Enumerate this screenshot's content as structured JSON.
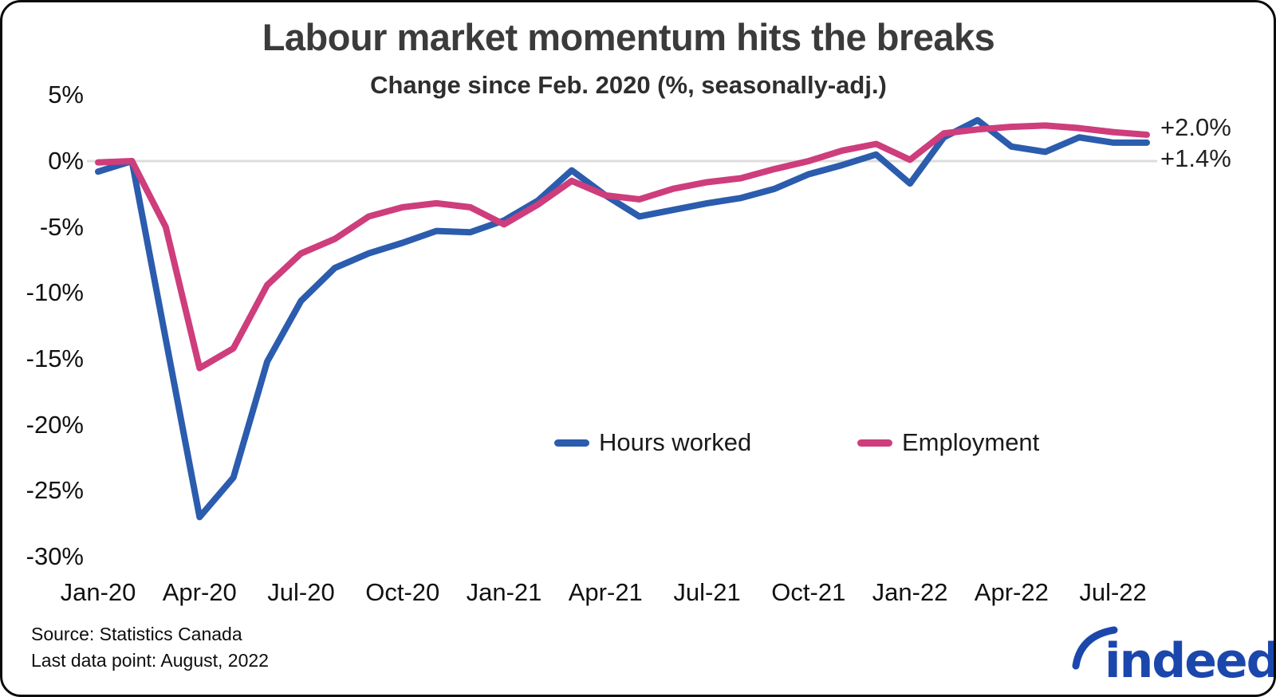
{
  "header": {
    "title": "Labour market momentum hits the breaks",
    "subtitle": "Change since Feb. 2020 (%, seasonally-adj.)"
  },
  "chart_data": {
    "type": "line",
    "title": "Labour market momentum hits the breaks",
    "subtitle": "Change since Feb. 2020 (%, seasonally-adj.)",
    "xlabel": "",
    "ylabel": "Change since Feb. 2020 (%)",
    "ylim": [
      -31.5,
      5
    ],
    "grid": "horizontal zero line only",
    "legend_position": "center-bottom",
    "x": [
      "Jan-20",
      "Feb-20",
      "Mar-20",
      "Apr-20",
      "May-20",
      "Jun-20",
      "Jul-20",
      "Aug-20",
      "Sep-20",
      "Oct-20",
      "Nov-20",
      "Dec-20",
      "Jan-21",
      "Feb-21",
      "Mar-21",
      "Apr-21",
      "May-21",
      "Jun-21",
      "Jul-21",
      "Aug-21",
      "Sep-21",
      "Oct-21",
      "Nov-21",
      "Dec-21",
      "Jan-22",
      "Feb-22",
      "Mar-22",
      "Apr-22",
      "May-22",
      "Jun-22",
      "Jul-22",
      "Aug-22"
    ],
    "x_ticks": [
      "Jan-20",
      "Apr-20",
      "Jul-20",
      "Oct-20",
      "Jan-21",
      "Apr-21",
      "Jul-21",
      "Oct-21",
      "Jan-22",
      "Apr-22",
      "Jul-22"
    ],
    "y_ticks": [
      {
        "label": "5%",
        "value": 5
      },
      {
        "label": "0%",
        "value": 0
      },
      {
        "label": "-5%",
        "value": -5
      },
      {
        "label": "-10%",
        "value": -10
      },
      {
        "label": "-15%",
        "value": -15
      },
      {
        "label": "-20%",
        "value": -20
      },
      {
        "label": "-25%",
        "value": -25
      },
      {
        "label": "-30%",
        "value": -30
      }
    ],
    "series": [
      {
        "name": "Hours worked",
        "color": "#2b5cad",
        "end_label": "+1.4%",
        "values": [
          -0.8,
          0.0,
          -13.5,
          -27.0,
          -24.0,
          -15.2,
          -10.6,
          -8.1,
          -7.0,
          -6.2,
          -5.3,
          -5.4,
          -4.5,
          -3.0,
          -0.7,
          -2.6,
          -4.2,
          -3.7,
          -3.2,
          -2.8,
          -2.1,
          -1.0,
          -0.3,
          0.5,
          -1.7,
          1.8,
          3.1,
          1.1,
          0.7,
          1.8,
          1.4,
          1.4
        ]
      },
      {
        "name": "Employment",
        "color": "#ce3d7c",
        "end_label": "+2.0%",
        "values": [
          -0.1,
          0.0,
          -5.0,
          -15.7,
          -14.2,
          -9.4,
          -7.0,
          -5.9,
          -4.2,
          -3.5,
          -3.2,
          -3.5,
          -4.8,
          -3.3,
          -1.5,
          -2.6,
          -2.9,
          -2.1,
          -1.6,
          -1.3,
          -0.6,
          0.0,
          0.8,
          1.3,
          0.1,
          2.1,
          2.4,
          2.6,
          2.7,
          2.5,
          2.2,
          2.0
        ]
      }
    ],
    "end_labels": [
      {
        "text": "+2.0%",
        "series": "Employment",
        "value": 2.0
      },
      {
        "text": "+1.4%",
        "series": "Hours worked",
        "value": 1.4
      }
    ]
  },
  "footer": {
    "source_line1": "Source: Statistics Canada",
    "source_line2": "Last data point: August, 2022",
    "logo_text": "indeed",
    "logo_color": "#1b47ad"
  },
  "colors": {
    "hours_worked": "#2b5cad",
    "employment": "#ce3d7c",
    "zero_gridline": "#dcdcdc",
    "title_text": "#3b3b3b"
  }
}
